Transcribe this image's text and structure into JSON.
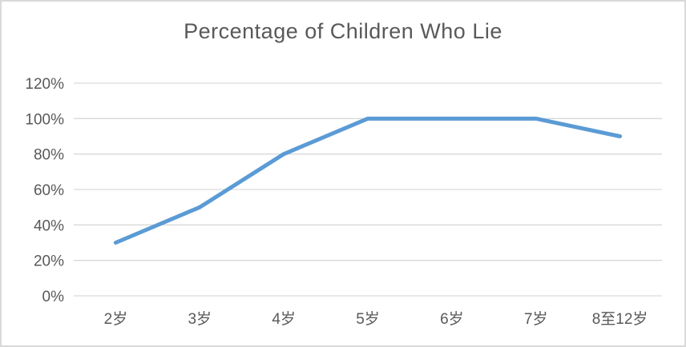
{
  "chart_data": {
    "type": "line",
    "title": "Percentage of Children Who Lie",
    "categories": [
      "2岁",
      "3岁",
      "4岁",
      "5岁",
      "6岁",
      "7岁",
      "8至12岁"
    ],
    "series": [
      {
        "name": "Percentage of Children Who Lie",
        "values": [
          30,
          50,
          80,
          100,
          100,
          100,
          90
        ]
      }
    ],
    "xlabel": "",
    "ylabel": "",
    "ylim": [
      0,
      120
    ],
    "y_tick_step": 20,
    "y_tick_labels": [
      "120%",
      "100%",
      "80%",
      "60%",
      "40%",
      "20%",
      "0%"
    ],
    "grid": "horizontal",
    "legend_position": "none",
    "colors": {
      "line": "#5b9bd5",
      "gridline": "#d9d9d9",
      "text": "#595959",
      "background": "#ffffff",
      "border": "#d9d9d9"
    }
  }
}
